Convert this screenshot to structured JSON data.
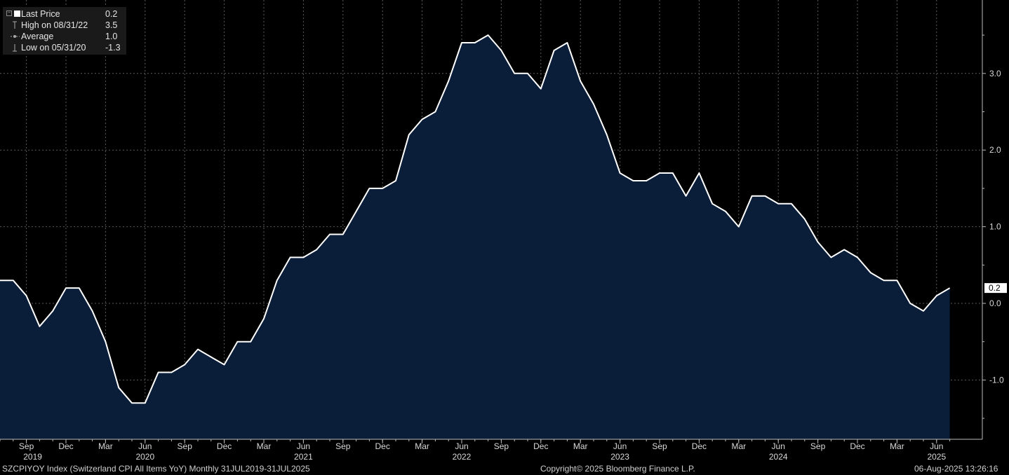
{
  "legend": {
    "rows": [
      {
        "label": "Last Price",
        "value": "0.2",
        "marker": "square-icon"
      },
      {
        "label": "High on 08/31/22",
        "value": "3.5",
        "marker": "high-marker-icon"
      },
      {
        "label": "Average",
        "value": "1.0",
        "marker": "average-marker-icon"
      },
      {
        "label": "Low on 05/31/20",
        "value": "-1.3",
        "marker": "low-marker-icon"
      }
    ]
  },
  "footer": {
    "left": "SZCPIYOY Index (Switzerland CPI All Items YoY)  Monthly 31JUL2019-31JUL2025",
    "center": "Copyright© 2025 Bloomberg Finance L.P.",
    "right": "06-Aug-2025 13:26:16"
  },
  "last_value_label": "0.2",
  "colors": {
    "background": "#000000",
    "area": "#0a1e3a",
    "line": "#ffffff",
    "grid": "#5a5a5a"
  },
  "chart_data": {
    "type": "area",
    "x": [
      "Jul 2019",
      "Aug 2019",
      "Sep 2019",
      "Oct 2019",
      "Nov 2019",
      "Dec 2019",
      "Jan 2020",
      "Feb 2020",
      "Mar 2020",
      "Apr 2020",
      "May 2020",
      "Jun 2020",
      "Jul 2020",
      "Aug 2020",
      "Sep 2020",
      "Oct 2020",
      "Nov 2020",
      "Dec 2020",
      "Jan 2021",
      "Feb 2021",
      "Mar 2021",
      "Apr 2021",
      "May 2021",
      "Jun 2021",
      "Jul 2021",
      "Aug 2021",
      "Sep 2021",
      "Oct 2021",
      "Nov 2021",
      "Dec 2021",
      "Jan 2022",
      "Feb 2022",
      "Mar 2022",
      "Apr 2022",
      "May 2022",
      "Jun 2022",
      "Jul 2022",
      "Aug 2022",
      "Sep 2022",
      "Oct 2022",
      "Nov 2022",
      "Dec 2022",
      "Jan 2023",
      "Feb 2023",
      "Mar 2023",
      "Apr 2023",
      "May 2023",
      "Jun 2023",
      "Jul 2023",
      "Aug 2023",
      "Sep 2023",
      "Oct 2023",
      "Nov 2023",
      "Dec 2023",
      "Jan 2024",
      "Feb 2024",
      "Mar 2024",
      "Apr 2024",
      "May 2024",
      "Jun 2024",
      "Jul 2024",
      "Aug 2024",
      "Sep 2024",
      "Oct 2024",
      "Nov 2024",
      "Dec 2024",
      "Jan 2025",
      "Feb 2025",
      "Mar 2025",
      "Apr 2025",
      "May 2025",
      "Jun 2025",
      "Jul 2025"
    ],
    "series": [
      {
        "values": [
          0.3,
          0.3,
          0.1,
          -0.3,
          -0.1,
          0.2,
          0.2,
          -0.1,
          -0.5,
          -1.1,
          -1.3,
          -1.3,
          -0.9,
          -0.9,
          -0.8,
          -0.6,
          -0.7,
          -0.8,
          -0.5,
          -0.5,
          -0.2,
          0.3,
          0.6,
          0.6,
          0.7,
          0.9,
          0.9,
          1.2,
          1.5,
          1.5,
          1.6,
          2.2,
          2.4,
          2.5,
          2.9,
          3.4,
          3.4,
          3.5,
          3.3,
          3.0,
          3.0,
          2.8,
          3.3,
          3.4,
          2.9,
          2.6,
          2.2,
          1.7,
          1.6,
          1.6,
          1.7,
          1.7,
          1.4,
          1.7,
          1.3,
          1.2,
          1.0,
          1.4,
          1.4,
          1.3,
          1.3,
          1.1,
          0.8,
          0.6,
          0.7,
          0.6,
          0.4,
          0.3,
          0.3,
          0.0,
          -0.1,
          0.1,
          0.2
        ]
      }
    ],
    "month_ticks": [
      {
        "label": "Sep",
        "index": 2
      },
      {
        "label": "Dec",
        "index": 5
      },
      {
        "label": "Mar",
        "index": 8
      },
      {
        "label": "Jun",
        "index": 11
      },
      {
        "label": "Sep",
        "index": 14
      },
      {
        "label": "Dec",
        "index": 17
      },
      {
        "label": "Mar",
        "index": 20
      },
      {
        "label": "Jun",
        "index": 23
      },
      {
        "label": "Sep",
        "index": 26
      },
      {
        "label": "Dec",
        "index": 29
      },
      {
        "label": "Mar",
        "index": 32
      },
      {
        "label": "Jun",
        "index": 35
      },
      {
        "label": "Sep",
        "index": 38
      },
      {
        "label": "Dec",
        "index": 41
      },
      {
        "label": "Mar",
        "index": 44
      },
      {
        "label": "Jun",
        "index": 47
      },
      {
        "label": "Sep",
        "index": 50
      },
      {
        "label": "Dec",
        "index": 53
      },
      {
        "label": "Mar",
        "index": 56
      },
      {
        "label": "Jun",
        "index": 59
      },
      {
        "label": "Sep",
        "index": 62
      },
      {
        "label": "Dec",
        "index": 65
      },
      {
        "label": "Mar",
        "index": 68
      },
      {
        "label": "Jun",
        "index": 71
      }
    ],
    "year_labels": [
      {
        "label": "2019",
        "index": 2
      },
      {
        "label": "2020",
        "index": 11
      },
      {
        "label": "2021",
        "index": 23
      },
      {
        "label": "2022",
        "index": 35
      },
      {
        "label": "2023",
        "index": 47
      },
      {
        "label": "2024",
        "index": 59
      },
      {
        "label": "2025",
        "index": 71
      }
    ],
    "y_ticks": [
      3.0,
      2.0,
      1.0,
      0.0,
      -1.0
    ],
    "y_tick_labels": [
      "3.0",
      "2.0",
      "1.0",
      "0.0",
      "-1.0"
    ],
    "ylim": [
      -1.75,
      3.95
    ],
    "grid": true,
    "y_axis_side": "right",
    "legend_position": "top-left"
  }
}
